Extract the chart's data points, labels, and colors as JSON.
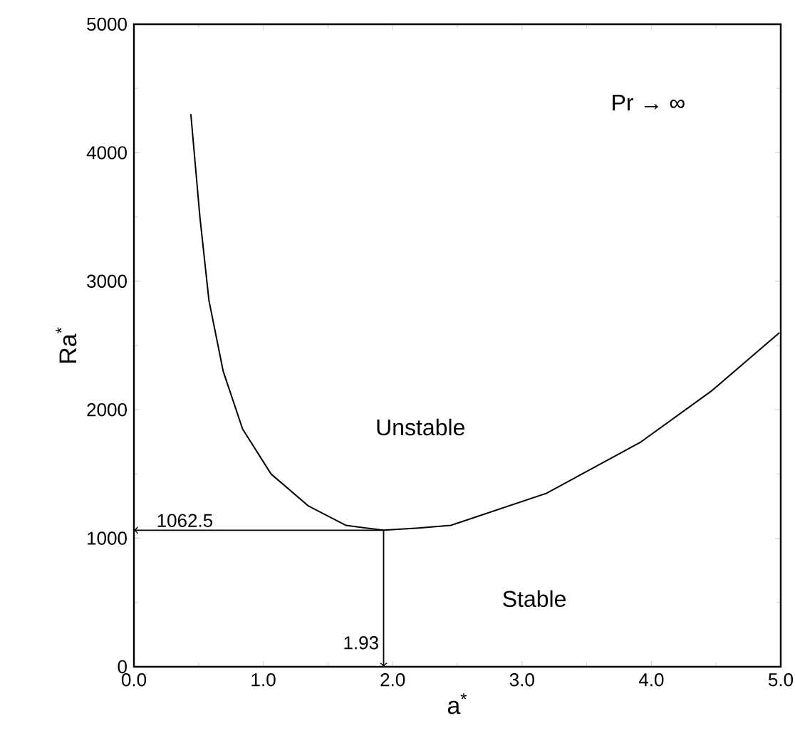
{
  "chart_data": {
    "type": "line",
    "xlabel": "a$^{*}$",
    "ylabel": "Ra$^{*}$",
    "x": [
      0.44,
      0.51,
      0.58,
      0.69,
      0.84,
      1.06,
      1.35,
      1.64,
      1.93,
      2.2,
      2.45,
      3.19,
      3.92,
      4.47,
      4.99
    ],
    "series": [
      {
        "color": "#000000",
        "values": [
          4300,
          3500,
          2850,
          2300,
          1850,
          1500,
          1250,
          1100,
          1062.5,
          1080,
          1100,
          1350,
          1750,
          2150,
          2600
        ]
      }
    ],
    "xlim": [
      0,
      5
    ],
    "ylim": [
      0,
      5000
    ],
    "xticks": [
      {
        "value": 0,
        "label": "0.0"
      },
      {
        "value": 1,
        "label": "1.0"
      },
      {
        "value": 2,
        "label": "2.0"
      },
      {
        "value": 3,
        "label": "3.0"
      },
      {
        "value": 4,
        "label": "4.0"
      },
      {
        "value": 5,
        "label": "5.0"
      }
    ],
    "yticks": [
      0,
      1000,
      2000,
      3000,
      4000,
      5000
    ],
    "ref_lines": [
      {
        "axis": "y",
        "value": 1062.5,
        "label": "1062.5"
      },
      {
        "axis": "x",
        "value": 1.93,
        "label": "1.93"
      }
    ],
    "annotations": [
      "Pr → ∞",
      "Unstable",
      "Stable"
    ],
    "grid": false,
    "marker": "none",
    "line_style": "solid"
  }
}
